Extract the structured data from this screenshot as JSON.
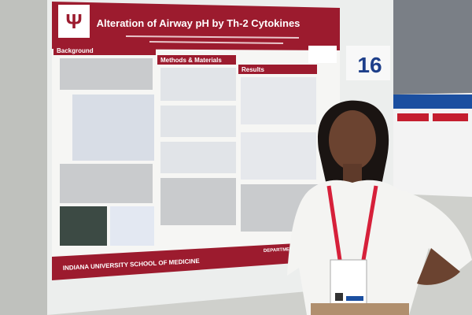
{
  "poster": {
    "title": "Alteration of Airway pH by Th-2 Cytokines",
    "sections": [
      "Background",
      "Methods & Materials",
      "Results"
    ],
    "footer": "INDIANA UNIVERSITY SCHOOL OF MEDICINE",
    "department": "DEPARTMENT OF"
  },
  "booth_number": "16"
}
